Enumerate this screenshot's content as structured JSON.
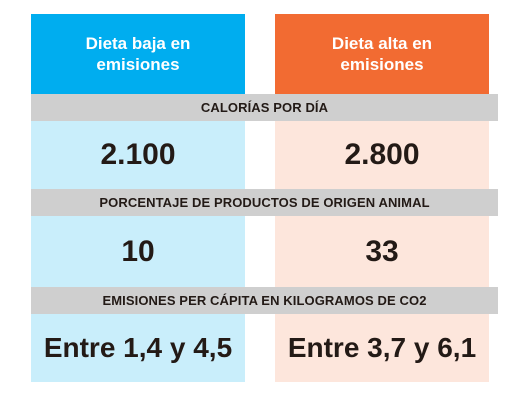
{
  "chart_data": {
    "type": "table",
    "columns": [
      "Dieta baja en emisiones",
      "Dieta alta en emisiones"
    ],
    "colors": {
      "low_header": "#00adef",
      "high_header": "#f26b32",
      "low_cell": "#c9eefb",
      "high_cell": "#fde6dc",
      "band": "#cfcfcf",
      "text": "#231a16"
    },
    "rows": [
      {
        "label": "CALORÍAS POR DÍA",
        "values": [
          "2.100",
          "2.800"
        ],
        "numeric": [
          2100,
          2800
        ]
      },
      {
        "label": "PORCENTAJE DE PRODUCTOS DE ORIGEN ANIMAL",
        "values": [
          "10",
          "33"
        ],
        "numeric": [
          10,
          33
        ]
      },
      {
        "label": "EMISIONES PER CÁPITA EN KILOGRAMOS DE CO2",
        "values": [
          "Entre 1,4 y 4,5",
          "Entre 3,7 y 6,1"
        ],
        "ranges": [
          [
            1.4,
            4.5
          ],
          [
            3.7,
            6.1
          ]
        ]
      }
    ]
  }
}
